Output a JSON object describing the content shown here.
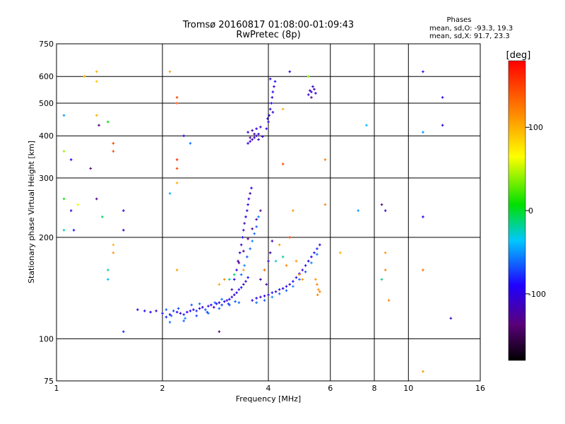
{
  "chart_data": {
    "type": "scatter",
    "title": "Tromsø 20160817 01:08:00-01:09:43",
    "subtitle": "RwPretec (8p)",
    "xlabel": "Frequency [MHz]",
    "ylabel": "Stationary phase Virtual Height [km]",
    "x_scale": "log",
    "y_scale": "log",
    "xlim": [
      1,
      16
    ],
    "ylim": [
      75,
      750
    ],
    "x_ticks": [
      1,
      2,
      4,
      6,
      8,
      10,
      16
    ],
    "x_tick_labels": [
      "1",
      "2",
      "4",
      "6",
      "8",
      "10",
      "16"
    ],
    "y_ticks": [
      75,
      100,
      200,
      300,
      400,
      500,
      600,
      750
    ],
    "y_tick_labels": [
      "75",
      "100",
      "200",
      "300",
      "400",
      "500",
      "600",
      "750"
    ],
    "grid": true,
    "phase_stats": {
      "heading": "Phases",
      "line_o": "mean, sd,O:  -93.3, 19.3",
      "line_x": "mean, sd,X:  91.7, 23.3"
    },
    "colorbar": {
      "label": "[deg]",
      "range": [
        -180,
        180
      ],
      "ticks": [
        100,
        0,
        -100
      ],
      "tick_labels": [
        "100",
        "0",
        "-100"
      ]
    },
    "points": [
      [
        1.7,
        122,
        -100
      ],
      [
        1.78,
        121,
        -95
      ],
      [
        1.85,
        120,
        -90
      ],
      [
        1.92,
        121,
        -110
      ],
      [
        2.0,
        119,
        -85
      ],
      [
        2.05,
        116,
        -80
      ],
      [
        2.1,
        118,
        -100
      ],
      [
        2.15,
        121,
        -75
      ],
      [
        2.2,
        120,
        -95
      ],
      [
        2.25,
        119,
        -110
      ],
      [
        2.3,
        118,
        -80
      ],
      [
        2.35,
        120,
        -100
      ],
      [
        2.4,
        121,
        -90
      ],
      [
        2.45,
        122,
        -105
      ],
      [
        2.5,
        121,
        -80
      ],
      [
        2.55,
        123,
        -100
      ],
      [
        2.6,
        124,
        -95
      ],
      [
        2.65,
        122,
        -70
      ],
      [
        2.7,
        125,
        -100
      ],
      [
        2.75,
        126,
        -90
      ],
      [
        2.8,
        124,
        -110
      ],
      [
        2.85,
        127,
        -85
      ],
      [
        2.9,
        128,
        -100
      ],
      [
        2.95,
        126,
        -75
      ],
      [
        3.0,
        129,
        -95
      ],
      [
        3.05,
        130,
        -105
      ],
      [
        3.1,
        131,
        -90
      ],
      [
        3.15,
        133,
        -100
      ],
      [
        3.2,
        135,
        -110
      ],
      [
        3.25,
        137,
        -95
      ],
      [
        3.3,
        140,
        -100
      ],
      [
        3.35,
        142,
        -85
      ],
      [
        3.4,
        145,
        -120
      ],
      [
        3.45,
        148,
        -100
      ],
      [
        3.5,
        152,
        -90
      ],
      [
        2.05,
        122,
        -65
      ],
      [
        2.12,
        117,
        -60
      ],
      [
        2.22,
        123,
        -70
      ],
      [
        2.32,
        115,
        -55
      ],
      [
        2.42,
        126,
        -65
      ],
      [
        2.55,
        127,
        -60
      ],
      [
        2.68,
        120,
        -70
      ],
      [
        2.82,
        128,
        -65
      ],
      [
        2.95,
        131,
        -60
      ],
      [
        3.08,
        127,
        -70
      ],
      [
        3.22,
        129,
        -65
      ],
      [
        2.1,
        112,
        -60
      ],
      [
        2.3,
        113,
        -65
      ],
      [
        2.5,
        117,
        -70
      ],
      [
        2.7,
        119,
        -60
      ],
      [
        2.9,
        123,
        -65
      ],
      [
        3.1,
        126,
        -70
      ],
      [
        3.3,
        128,
        -60
      ],
      [
        3.15,
        140,
        -110
      ],
      [
        3.2,
        150,
        -100
      ],
      [
        3.25,
        160,
        -95
      ],
      [
        3.28,
        170,
        -120
      ],
      [
        3.32,
        180,
        -100
      ],
      [
        3.35,
        190,
        -110
      ],
      [
        3.38,
        200,
        -95
      ],
      [
        3.4,
        210,
        -105
      ],
      [
        3.42,
        220,
        -120
      ],
      [
        3.45,
        230,
        -100
      ],
      [
        3.48,
        240,
        -110
      ],
      [
        3.5,
        250,
        -95
      ],
      [
        3.52,
        260,
        -105
      ],
      [
        3.55,
        270,
        -115
      ],
      [
        3.58,
        280,
        -100
      ],
      [
        3.35,
        155,
        -60
      ],
      [
        3.42,
        165,
        -55
      ],
      [
        3.48,
        175,
        -65
      ],
      [
        3.55,
        185,
        -60
      ],
      [
        3.6,
        195,
        -55
      ],
      [
        3.65,
        205,
        -60
      ],
      [
        3.7,
        215,
        -65
      ],
      [
        3.75,
        230,
        -55
      ],
      [
        3.3,
        168,
        -130
      ],
      [
        3.4,
        182,
        -125
      ],
      [
        3.5,
        198,
        -135
      ],
      [
        3.6,
        212,
        -130
      ],
      [
        3.7,
        226,
        -125
      ],
      [
        3.8,
        240,
        -130
      ],
      [
        3.6,
        130,
        -100
      ],
      [
        3.7,
        132,
        -90
      ],
      [
        3.8,
        133,
        -110
      ],
      [
        3.9,
        134,
        -95
      ],
      [
        4.0,
        135,
        -100
      ],
      [
        4.1,
        137,
        -85
      ],
      [
        4.2,
        138,
        -105
      ],
      [
        4.3,
        140,
        -90
      ],
      [
        4.4,
        141,
        -100
      ],
      [
        4.5,
        143,
        -95
      ],
      [
        4.6,
        145,
        -110
      ],
      [
        4.7,
        148,
        -90
      ],
      [
        4.8,
        152,
        -100
      ],
      [
        4.9,
        156,
        -95
      ],
      [
        5.0,
        160,
        -110
      ],
      [
        5.1,
        165,
        -90
      ],
      [
        5.2,
        170,
        -100
      ],
      [
        5.3,
        175,
        -95
      ],
      [
        5.4,
        180,
        -85
      ],
      [
        5.5,
        185,
        -80
      ],
      [
        5.6,
        190,
        -90
      ],
      [
        3.7,
        128,
        -60
      ],
      [
        3.9,
        130,
        -65
      ],
      [
        4.1,
        133,
        -55
      ],
      [
        4.3,
        136,
        -60
      ],
      [
        4.5,
        139,
        -65
      ],
      [
        4.7,
        143,
        -55
      ],
      [
        4.9,
        150,
        -60
      ],
      [
        5.1,
        158,
        -65
      ],
      [
        5.3,
        168,
        -55
      ],
      [
        5.5,
        178,
        -60
      ],
      [
        3.8,
        150,
        -120
      ],
      [
        3.9,
        160,
        -115
      ],
      [
        4.0,
        170,
        -110
      ],
      [
        4.05,
        180,
        -120
      ],
      [
        4.1,
        195,
        -115
      ],
      [
        3.95,
        145,
        -125
      ],
      [
        3.5,
        380,
        -110
      ],
      [
        3.55,
        385,
        -100
      ],
      [
        3.6,
        390,
        -120
      ],
      [
        3.65,
        395,
        -105
      ],
      [
        3.7,
        400,
        -115
      ],
      [
        3.75,
        405,
        -100
      ],
      [
        3.5,
        410,
        -110
      ],
      [
        3.6,
        415,
        -120
      ],
      [
        3.7,
        420,
        -100
      ],
      [
        3.8,
        425,
        -110
      ],
      [
        3.55,
        395,
        -130
      ],
      [
        3.65,
        405,
        -125
      ],
      [
        3.75,
        390,
        -115
      ],
      [
        3.85,
        398,
        -105
      ],
      [
        3.95,
        420,
        -100
      ],
      [
        4.0,
        440,
        -95
      ],
      [
        4.02,
        460,
        -110
      ],
      [
        4.05,
        480,
        -100
      ],
      [
        4.08,
        500,
        -90
      ],
      [
        4.1,
        520,
        -105
      ],
      [
        4.12,
        540,
        -95
      ],
      [
        4.15,
        560,
        -100
      ],
      [
        4.18,
        580,
        -85
      ],
      [
        4.05,
        590,
        -100
      ],
      [
        3.98,
        450,
        -95
      ],
      [
        4.12,
        470,
        -100
      ],
      [
        5.2,
        530,
        -110
      ],
      [
        5.3,
        540,
        -100
      ],
      [
        5.4,
        550,
        -120
      ],
      [
        5.35,
        560,
        -105
      ],
      [
        5.25,
        545,
        -115
      ],
      [
        5.45,
        535,
        -100
      ],
      [
        5.3,
        520,
        -130
      ],
      [
        5.5,
        145,
        120
      ],
      [
        5.55,
        140,
        115
      ],
      [
        5.6,
        138,
        125
      ],
      [
        5.45,
        150,
        110
      ],
      [
        5.52,
        135,
        120
      ],
      [
        4.9,
        155,
        110
      ],
      [
        5.0,
        150,
        115
      ],
      [
        3.4,
        160,
        110
      ],
      [
        3.0,
        150,
        115
      ],
      [
        2.9,
        145,
        105
      ],
      [
        4.8,
        170,
        110
      ],
      [
        4.5,
        165,
        120
      ],
      [
        4.2,
        170,
        -30
      ],
      [
        4.4,
        175,
        -20
      ],
      [
        3.1,
        150,
        -20
      ],
      [
        3.2,
        155,
        -10
      ],
      [
        1.05,
        460,
        -50
      ],
      [
        1.1,
        340,
        -90
      ],
      [
        1.1,
        240,
        -100
      ],
      [
        1.12,
        210,
        -90
      ],
      [
        1.25,
        320,
        -140
      ],
      [
        1.3,
        260,
        -130
      ],
      [
        1.32,
        430,
        -140
      ],
      [
        1.35,
        230,
        -10
      ],
      [
        1.4,
        440,
        5
      ],
      [
        1.4,
        160,
        -20
      ],
      [
        1.55,
        240,
        -100
      ],
      [
        1.55,
        210,
        -110
      ],
      [
        1.55,
        105,
        -80
      ],
      [
        2.3,
        400,
        -100
      ],
      [
        2.9,
        105,
        -140
      ],
      [
        1.05,
        360,
        40
      ],
      [
        1.05,
        260,
        10
      ],
      [
        1.05,
        210,
        -20
      ],
      [
        1.15,
        250,
        60
      ],
      [
        1.2,
        600,
        100
      ],
      [
        1.3,
        620,
        100
      ],
      [
        1.3,
        580,
        90
      ],
      [
        1.3,
        460,
        100
      ],
      [
        1.45,
        380,
        150
      ],
      [
        1.45,
        360,
        150
      ],
      [
        1.45,
        190,
        100
      ],
      [
        1.45,
        180,
        110
      ],
      [
        1.4,
        150,
        -40
      ],
      [
        2.1,
        620,
        110
      ],
      [
        2.2,
        520,
        150
      ],
      [
        2.2,
        500,
        140
      ],
      [
        2.2,
        340,
        160
      ],
      [
        2.2,
        320,
        150
      ],
      [
        2.2,
        290,
        100
      ],
      [
        2.1,
        270,
        -40
      ],
      [
        2.2,
        160,
        110
      ],
      [
        2.4,
        380,
        -60
      ],
      [
        4.6,
        620,
        -100
      ],
      [
        5.2,
        600,
        40
      ],
      [
        4.4,
        480,
        100
      ],
      [
        4.4,
        330,
        150
      ],
      [
        4.6,
        200,
        150
      ],
      [
        4.3,
        190,
        110
      ],
      [
        3.9,
        160,
        120
      ],
      [
        4.7,
        240,
        110
      ],
      [
        5.8,
        340,
        120
      ],
      [
        5.8,
        250,
        120
      ],
      [
        6.4,
        180,
        100
      ],
      [
        7.2,
        240,
        -50
      ],
      [
        7.6,
        430,
        -40
      ],
      [
        8.4,
        250,
        -140
      ],
      [
        8.6,
        240,
        -110
      ],
      [
        8.6,
        180,
        110
      ],
      [
        8.6,
        160,
        120
      ],
      [
        8.8,
        130,
        120
      ],
      [
        8.4,
        150,
        -20
      ],
      [
        11.0,
        620,
        -100
      ],
      [
        11.0,
        410,
        -50
      ],
      [
        11.0,
        230,
        -100
      ],
      [
        11.0,
        160,
        130
      ],
      [
        11.0,
        80,
        110
      ],
      [
        12.5,
        520,
        -100
      ],
      [
        12.5,
        430,
        -100
      ],
      [
        13.2,
        115,
        -110
      ]
    ]
  }
}
